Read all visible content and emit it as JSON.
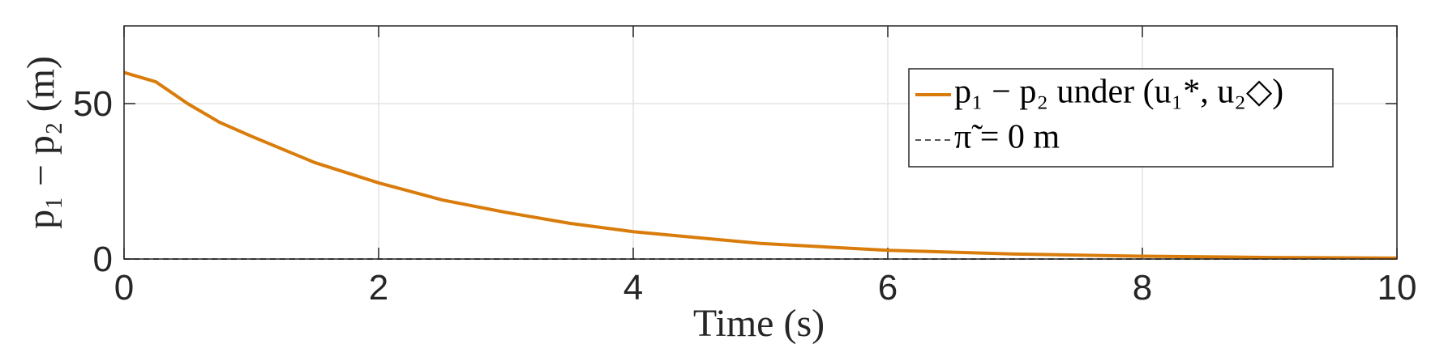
{
  "chart_data": {
    "type": "line",
    "x_label": "Time (s)",
    "y_label": "p₁ − p₂ (m)",
    "x": [
      0,
      0.25,
      0.5,
      0.75,
      1,
      1.5,
      2,
      2.5,
      3,
      3.5,
      4,
      5,
      6,
      7,
      8,
      9,
      10
    ],
    "series": [
      {
        "name": "p₁ − p₂ under (u₁*, u₂◇)",
        "color": "#d97c0b",
        "values": [
          60,
          57,
          50,
          44,
          39.5,
          31,
          24.5,
          19,
          15,
          11.5,
          8.8,
          5,
          2.8,
          1.6,
          0.9,
          0.5,
          0.3
        ]
      }
    ],
    "reference_line": {
      "name": "π̃ = 0 m",
      "value": 0,
      "color": "#555555"
    },
    "xlim": [
      0,
      10
    ],
    "xticks": [
      0,
      2,
      4,
      6,
      8,
      10
    ],
    "ylim": [
      0,
      75
    ],
    "yticks": [
      0,
      50
    ],
    "grid": true,
    "legend": "upper right"
  }
}
